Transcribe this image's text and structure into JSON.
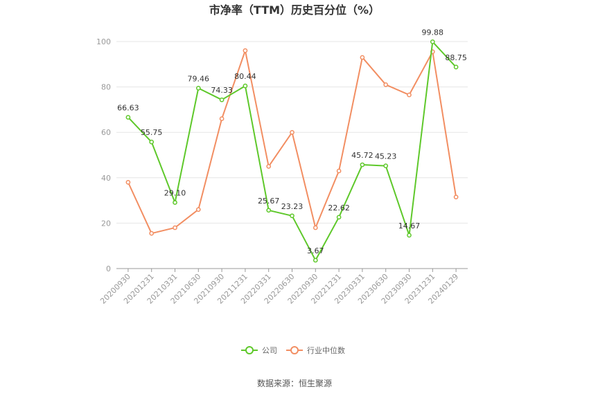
{
  "chart_data": {
    "type": "line",
    "title": "市净率（TTM）历史百分位（%）",
    "categories": [
      "20200930",
      "20201231",
      "20210331",
      "20210630",
      "20210930",
      "20211231",
      "20220331",
      "20220630",
      "20220930",
      "20221231",
      "20230331",
      "20230630",
      "20230930",
      "20231231",
      "20240129"
    ],
    "series": [
      {
        "name": "公司",
        "color": "#5ec82a",
        "values": [
          66.63,
          55.75,
          29.1,
          79.46,
          74.33,
          80.44,
          25.67,
          23.23,
          3.67,
          22.62,
          45.72,
          45.23,
          14.67,
          99.88,
          88.75
        ],
        "labels": [
          "66.63",
          "55.75",
          "29.10",
          "79.46",
          "74.33",
          "80.44",
          "25.67",
          "23.23",
          "3.67",
          "22.62",
          "45.72",
          "45.23",
          "14.67",
          "99.88",
          "88.75"
        ]
      },
      {
        "name": "行业中位数",
        "color": "#f28e62",
        "values": [
          38.0,
          15.5,
          18.0,
          26.0,
          66.0,
          96.0,
          45.0,
          60.0,
          18.0,
          43.0,
          93.0,
          81.0,
          76.5,
          95.5,
          31.5
        ]
      }
    ],
    "yticks": [
      "0",
      "20",
      "40",
      "60",
      "80",
      "100"
    ],
    "ylim": [
      0,
      100
    ],
    "grid": true,
    "legend_position": "bottom"
  },
  "source_text": "数据来源：恒生聚源"
}
